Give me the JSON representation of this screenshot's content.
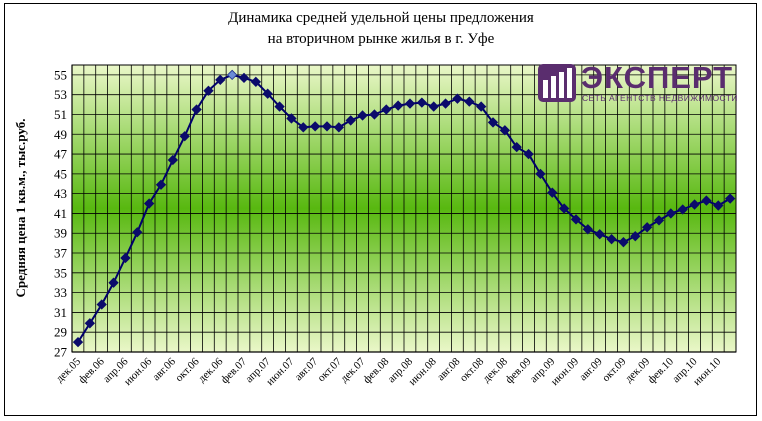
{
  "title_line1": "Динамика средней удельной цены предложения",
  "title_line2": "на вторичном рынке жилья в г. Уфе",
  "logo": {
    "name": "ЭКСПЕРТ",
    "tagline": "СЕТЬ АГЕНТСТВ НЕДВИЖИМОСТИ",
    "color": "#5a2d6e"
  },
  "chart_data": {
    "type": "line",
    "ylabel": "Средняя цена 1 кв.м., тыс.руб.",
    "xlabel": "",
    "ylim": [
      27,
      56
    ],
    "yticks": [
      27,
      29,
      31,
      33,
      35,
      37,
      39,
      41,
      43,
      45,
      47,
      49,
      51,
      53,
      55
    ],
    "grid": true,
    "legend": "none",
    "line_color": "#00006b",
    "marker_color": "#0b0b6b",
    "highlight_marker_color": "#6b8bd6",
    "x_tick_labels": [
      "дек.05",
      "фев.06",
      "апр.06",
      "июн.06",
      "авг.06",
      "окт.06",
      "дек.06",
      "фев.07",
      "апр.07",
      "июн.07",
      "авг.07",
      "окт.07",
      "дек.07",
      "фев.08",
      "апр.08",
      "июн.08",
      "авг.08",
      "окт.08",
      "дек.08",
      "фев.09",
      "апр.09",
      "июн.09",
      "авг.09",
      "окт.09",
      "дек.09",
      "фев.10",
      "апр.10",
      "июн.10"
    ],
    "x": [
      "дек.05",
      "янв.06",
      "фев.06",
      "мар.06",
      "апр.06",
      "май.06",
      "июн.06",
      "июл.06",
      "авг.06",
      "сен.06",
      "окт.06",
      "ноя.06",
      "дек.06",
      "янв.07",
      "фев.07",
      "мар.07",
      "апр.07",
      "май.07",
      "июн.07",
      "июл.07",
      "авг.07",
      "сен.07",
      "окт.07",
      "ноя.07",
      "дек.07",
      "янв.08",
      "фев.08",
      "мар.08",
      "апр.08",
      "май.08",
      "июн.08",
      "июл.08",
      "авг.08",
      "сен.08",
      "окт.08",
      "ноя.08",
      "дек.08",
      "янв.09",
      "фев.09",
      "мар.09",
      "апр.09",
      "май.09",
      "июн.09",
      "июл.09",
      "авг.09",
      "сен.09",
      "окт.09",
      "ноя.09",
      "дек.09",
      "янв.10",
      "фев.10",
      "мар.10",
      "апр.10",
      "май.10",
      "июн.10",
      "июл.10"
    ],
    "values": [
      28.0,
      29.9,
      31.8,
      34.0,
      36.5,
      39.1,
      42.0,
      43.9,
      46.4,
      48.8,
      51.5,
      53.4,
      54.5,
      55.0,
      54.7,
      54.3,
      53.1,
      51.8,
      50.6,
      49.7,
      49.8,
      49.8,
      49.7,
      50.4,
      50.9,
      51.0,
      51.5,
      51.9,
      52.1,
      52.2,
      51.8,
      52.1,
      52.6,
      52.3,
      51.8,
      50.2,
      49.4,
      47.7,
      47.0,
      45.0,
      43.1,
      41.5,
      40.4,
      39.4,
      38.9,
      38.4,
      38.1,
      38.7,
      39.6,
      40.3,
      41.0,
      41.4,
      41.9,
      42.3,
      41.8,
      42.5
    ],
    "highlight_index": 13
  }
}
